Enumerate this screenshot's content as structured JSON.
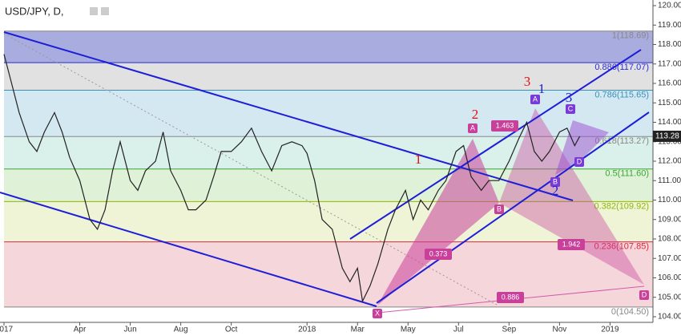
{
  "chart_data": {
    "type": "line",
    "title": "USD/JPY, D,",
    "last_price": {
      "value": 113.28,
      "label": "113.28"
    },
    "color": "#222222",
    "x": [
      0.0,
      0.3,
      0.6,
      1.0,
      1.3,
      1.6,
      2.0,
      2.3,
      2.6,
      3.0,
      3.4,
      3.7,
      4.0,
      4.3,
      4.6,
      5.0,
      5.3,
      5.6,
      6.0,
      6.3,
      6.6,
      7.0,
      7.3,
      7.6,
      8.0,
      8.3,
      8.6,
      9.0,
      9.4,
      9.8,
      10.2,
      10.6,
      11.0,
      11.4,
      11.8,
      12.0,
      12.3,
      12.6,
      13.0,
      13.4,
      13.7,
      14.0,
      14.2,
      14.5,
      14.8,
      15.2,
      15.5,
      15.9,
      16.2,
      16.5,
      16.8,
      17.2,
      17.5,
      17.9,
      18.2,
      18.5,
      18.9,
      19.2,
      19.6,
      20.0,
      20.4,
      20.7,
      21.0,
      21.3,
      21.6,
      22.0,
      22.3,
      22.6,
      22.8
    ],
    "values": [
      117.5,
      116,
      114.5,
      113.0,
      112.5,
      113.5,
      114.5,
      113.5,
      112.2,
      111.0,
      109.0,
      108.5,
      109.5,
      111.5,
      113.0,
      111.0,
      110.5,
      111.5,
      112.0,
      113.5,
      111.5,
      110.5,
      109.5,
      109.5,
      110.0,
      111.2,
      112.5,
      112.5,
      113.0,
      113.7,
      112.5,
      111.5,
      112.8,
      113.0,
      112.8,
      112.4,
      111.0,
      109.0,
      108.5,
      106.5,
      105.8,
      106.5,
      104.8,
      105.6,
      106.7,
      108.5,
      109.5,
      110.5,
      109.0,
      110.0,
      109.5,
      110.5,
      111.0,
      112.5,
      112.8,
      111.2,
      110.5,
      111.0,
      111.0,
      112.0,
      113.2,
      114.0,
      112.5,
      112.0,
      112.5,
      113.5,
      113.7,
      112.8,
      113.28
    ],
    "xlim": [
      0,
      25.7
    ],
    "xticks": [
      {
        "value": 0,
        "label": "2017"
      },
      {
        "value": 3,
        "label": "Apr"
      },
      {
        "value": 5,
        "label": "Jun"
      },
      {
        "value": 7,
        "label": "Aug"
      },
      {
        "value": 9,
        "label": "Oct"
      },
      {
        "value": 12,
        "label": "2018"
      },
      {
        "value": 14,
        "label": "Mar"
      },
      {
        "value": 16,
        "label": "May"
      },
      {
        "value": 18,
        "label": "Jul"
      },
      {
        "value": 20,
        "label": "Sep"
      },
      {
        "value": 22,
        "label": "Nov"
      },
      {
        "value": 24,
        "label": "2019"
      }
    ],
    "ylim": [
      103.71,
      120.29
    ],
    "yticks": [
      {
        "value": 104,
        "label": "104.00"
      },
      {
        "value": 105,
        "label": "105.00"
      },
      {
        "value": 106,
        "label": "106.00"
      },
      {
        "value": 107,
        "label": "107.00"
      },
      {
        "value": 108,
        "label": "108.00"
      },
      {
        "value": 109,
        "label": "109.00"
      },
      {
        "value": 110,
        "label": "110.00"
      },
      {
        "value": 111,
        "label": "111.00"
      },
      {
        "value": 112,
        "label": "112.00"
      },
      {
        "value": 113,
        "label": "113.00"
      },
      {
        "value": 114,
        "label": "114.00"
      },
      {
        "value": 115,
        "label": "115.00"
      },
      {
        "value": 116,
        "label": "116.00"
      },
      {
        "value": 117,
        "label": "117.00"
      },
      {
        "value": 118,
        "label": "118.00"
      },
      {
        "value": 119,
        "label": "119.00"
      },
      {
        "value": 120,
        "label": "120.00"
      }
    ],
    "fib_levels": [
      {
        "value": 118.69,
        "label": "1(118.69)",
        "color": "#888888"
      },
      {
        "value": 117.07,
        "label": "0.886(117.07)",
        "color": "#2b2bd6"
      },
      {
        "value": 115.65,
        "label": "0.786(115.65)",
        "color": "#3a8fb7"
      },
      {
        "value": 113.27,
        "label": "0.618(113.27)",
        "color": "#888888"
      },
      {
        "value": 111.6,
        "label": "0.5(111.60)",
        "color": "#3aa53a"
      },
      {
        "value": 109.92,
        "label": "0.382(109.92)",
        "color": "#8fb800"
      },
      {
        "value": 107.85,
        "label": "0.236(107.85)",
        "color": "#e0263a"
      },
      {
        "value": 104.5,
        "label": "0(104.50)",
        "color": "#888888"
      }
    ],
    "fib_colors": [
      "#9a9ed8",
      "#dcdcdc",
      "#cde4f0",
      "#d3ede6",
      "#d9f0d0",
      "#edf2d0",
      "#f3cfd4"
    ],
    "annotations": [
      "X",
      "A",
      "B",
      "D",
      "1.463",
      "0.373",
      "1.942",
      "0.886",
      "A",
      "B",
      "C",
      "D",
      "1",
      "2",
      "3",
      "1",
      "2",
      "3"
    ]
  }
}
